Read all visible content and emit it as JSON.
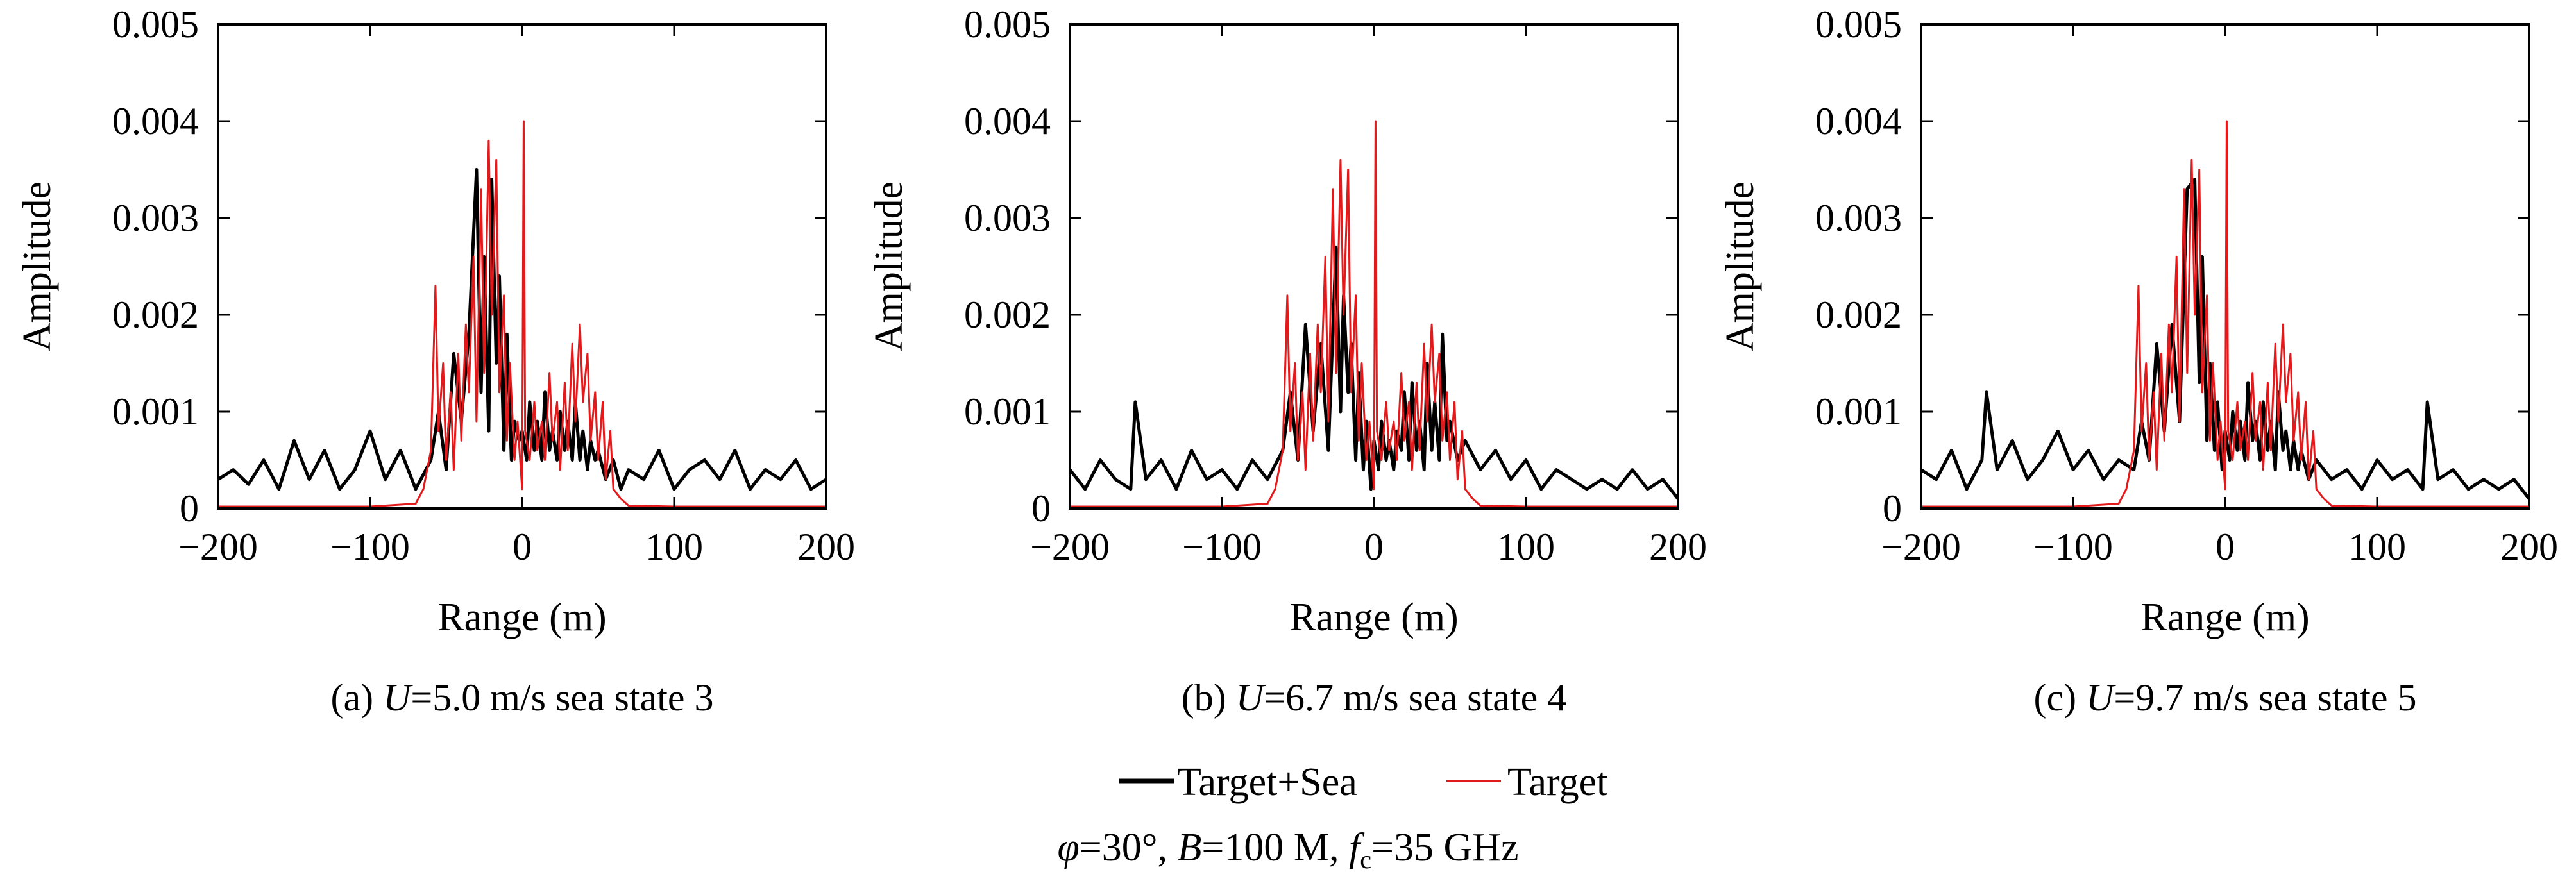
{
  "figure": {
    "legend": {
      "entries": [
        {
          "label": "Target+Sea",
          "color": "#000000"
        },
        {
          "label": "Target",
          "color": "#e31a1c"
        }
      ]
    },
    "params": {
      "phi_symbol": "φ",
      "phi_value": "=30°, ",
      "b_symbol": "B",
      "b_value": "=100 M, ",
      "f_symbol": "f",
      "f_sub": "c",
      "f_value": "=35 GHz"
    }
  },
  "chart_data": [
    {
      "type": "line",
      "panel": "(a)",
      "caption": {
        "prefix": "(a)  ",
        "var": "U",
        "rest": "=5.0 m/s sea state 3"
      },
      "xlabel": "Range (m)",
      "ylabel": "Amplitude",
      "xlim": [
        -200,
        200
      ],
      "ylim": [
        0,
        0.005
      ],
      "xticks": [
        -200,
        -100,
        0,
        100,
        200
      ],
      "xtick_labels": [
        "−200",
        "−100",
        "0",
        "100",
        "200"
      ],
      "yticks": [
        0,
        0.001,
        0.002,
        0.003,
        0.004,
        0.005
      ],
      "ytick_labels": [
        "0",
        "0.001",
        "0.002",
        "0.003",
        "0.004",
        "0.005"
      ],
      "series": [
        {
          "name": "Target+Sea",
          "color": "#000000",
          "width": 5,
          "x": [
            -200,
            -190,
            -180,
            -170,
            -160,
            -150,
            -140,
            -130,
            -120,
            -110,
            -100,
            -90,
            -80,
            -70,
            -60,
            -55,
            -50,
            -45,
            -40,
            -35,
            -30,
            -27,
            -25,
            -22,
            -20,
            -17,
            -15,
            -12,
            -10,
            -7,
            -5,
            -2,
            0,
            3,
            5,
            8,
            10,
            13,
            15,
            18,
            20,
            23,
            25,
            28,
            30,
            33,
            35,
            38,
            40,
            43,
            45,
            48,
            50,
            55,
            60,
            65,
            70,
            80,
            90,
            100,
            110,
            120,
            130,
            140,
            150,
            160,
            170,
            180,
            190,
            200
          ],
          "y": [
            0.0003,
            0.0004,
            0.00025,
            0.0005,
            0.0002,
            0.0007,
            0.0003,
            0.0006,
            0.0002,
            0.0004,
            0.0008,
            0.0003,
            0.0006,
            0.0002,
            0.0005,
            0.001,
            0.0004,
            0.0016,
            0.0009,
            0.0018,
            0.0035,
            0.0012,
            0.0026,
            0.0008,
            0.0034,
            0.0015,
            0.0024,
            0.0006,
            0.0018,
            0.0005,
            0.0009,
            0.0007,
            0.0008,
            0.0005,
            0.0011,
            0.0006,
            0.0009,
            0.0005,
            0.0012,
            0.0006,
            0.0008,
            0.0005,
            0.001,
            0.0006,
            0.0009,
            0.0005,
            0.0011,
            0.0005,
            0.0008,
            0.0004,
            0.0007,
            0.0005,
            0.0006,
            0.0003,
            0.0005,
            0.0002,
            0.0004,
            0.0003,
            0.0006,
            0.0002,
            0.0004,
            0.0005,
            0.0003,
            0.0006,
            0.0002,
            0.0004,
            0.0003,
            0.0005,
            0.0002,
            0.0003
          ]
        },
        {
          "name": "Target",
          "color": "#e31a1c",
          "width": 3,
          "x": [
            -200,
            -100,
            -70,
            -65,
            -60,
            -57,
            -55,
            -52,
            -50,
            -47,
            -45,
            -42,
            -40,
            -37,
            -35,
            -32,
            -30,
            -27,
            -25,
            -22,
            -20,
            -17,
            -15,
            -12,
            -10,
            -8,
            -5,
            -3,
            0,
            1,
            2,
            5,
            8,
            10,
            13,
            15,
            18,
            20,
            23,
            25,
            28,
            30,
            33,
            35,
            38,
            40,
            43,
            45,
            48,
            50,
            53,
            55,
            58,
            60,
            65,
            70,
            100,
            200
          ],
          "y": [
            2e-05,
            2e-05,
            5e-05,
            0.0002,
            0.0006,
            0.0023,
            0.0008,
            0.0015,
            0.0005,
            0.0012,
            0.0004,
            0.0016,
            0.0007,
            0.0019,
            0.0012,
            0.0026,
            0.0009,
            0.0033,
            0.0014,
            0.0038,
            0.002,
            0.0036,
            0.0012,
            0.0022,
            0.0007,
            0.0015,
            0.0005,
            0.0009,
            0.0002,
            0.004,
            0.0008,
            0.0005,
            0.0011,
            0.0006,
            0.0009,
            0.0005,
            0.0014,
            0.0007,
            0.0011,
            0.0004,
            0.0013,
            0.0006,
            0.0017,
            0.0009,
            0.0019,
            0.0011,
            0.0016,
            0.0007,
            0.0012,
            0.0005,
            0.0011,
            0.0003,
            0.0008,
            0.0002,
            0.0001,
            3e-05,
            2e-05,
            2e-05
          ]
        }
      ]
    },
    {
      "type": "line",
      "panel": "(b)",
      "caption": {
        "prefix": "(b)  ",
        "var": "U",
        "rest": "=6.7 m/s sea state 4"
      },
      "xlabel": "Range (m)",
      "ylabel": "Amplitude",
      "xlim": [
        -200,
        200
      ],
      "ylim": [
        0,
        0.005
      ],
      "xticks": [
        -200,
        -100,
        0,
        100,
        200
      ],
      "xtick_labels": [
        "−200",
        "−100",
        "0",
        "100",
        "200"
      ],
      "yticks": [
        0,
        0.001,
        0.002,
        0.003,
        0.004,
        0.005
      ],
      "ytick_labels": [
        "0",
        "0.001",
        "0.002",
        "0.003",
        "0.004",
        "0.005"
      ],
      "series": [
        {
          "name": "Target+Sea",
          "color": "#000000",
          "width": 5,
          "x": [
            -200,
            -190,
            -180,
            -170,
            -160,
            -157,
            -150,
            -140,
            -130,
            -120,
            -110,
            -100,
            -90,
            -80,
            -70,
            -60,
            -55,
            -50,
            -45,
            -40,
            -35,
            -30,
            -25,
            -22,
            -20,
            -17,
            -15,
            -12,
            -10,
            -7,
            -5,
            -2,
            0,
            3,
            5,
            8,
            10,
            13,
            15,
            18,
            20,
            23,
            25,
            28,
            30,
            33,
            35,
            38,
            40,
            43,
            45,
            48,
            50,
            55,
            60,
            70,
            80,
            90,
            100,
            110,
            120,
            130,
            140,
            150,
            160,
            170,
            180,
            190,
            200
          ],
          "y": [
            0.0004,
            0.0002,
            0.0005,
            0.0003,
            0.0002,
            0.0011,
            0.0003,
            0.0005,
            0.0002,
            0.0006,
            0.0003,
            0.0004,
            0.0002,
            0.0005,
            0.0003,
            0.0006,
            0.0012,
            0.0005,
            0.0019,
            0.0008,
            0.0017,
            0.0006,
            0.0027,
            0.001,
            0.0022,
            0.0012,
            0.0017,
            0.0005,
            0.0014,
            0.0004,
            0.0009,
            0.0002,
            0.0007,
            0.0004,
            0.0009,
            0.0005,
            0.0007,
            0.0004,
            0.0008,
            0.0006,
            0.0012,
            0.0005,
            0.0013,
            0.0006,
            0.0009,
            0.0004,
            0.0015,
            0.0006,
            0.0011,
            0.0005,
            0.0018,
            0.0007,
            0.0009,
            0.0005,
            0.0007,
            0.0004,
            0.0006,
            0.0003,
            0.0005,
            0.0002,
            0.0004,
            0.0003,
            0.0002,
            0.0003,
            0.0002,
            0.0004,
            0.0002,
            0.0003,
            0.0001
          ]
        },
        {
          "name": "Target",
          "color": "#e31a1c",
          "width": 3,
          "x": [
            -200,
            -100,
            -70,
            -65,
            -60,
            -57,
            -55,
            -52,
            -50,
            -47,
            -45,
            -42,
            -40,
            -37,
            -35,
            -32,
            -30,
            -27,
            -25,
            -22,
            -20,
            -17,
            -15,
            -12,
            -10,
            -8,
            -5,
            -3,
            0,
            1,
            2,
            5,
            8,
            10,
            13,
            15,
            18,
            20,
            23,
            25,
            28,
            30,
            33,
            35,
            38,
            40,
            43,
            45,
            48,
            50,
            53,
            55,
            58,
            60,
            65,
            70,
            100,
            200
          ],
          "y": [
            2e-05,
            2e-05,
            5e-05,
            0.0002,
            0.0006,
            0.0022,
            0.0008,
            0.0015,
            0.0005,
            0.0012,
            0.0004,
            0.0016,
            0.0007,
            0.0019,
            0.0012,
            0.0026,
            0.0009,
            0.0033,
            0.0014,
            0.0036,
            0.002,
            0.0035,
            0.0012,
            0.0022,
            0.0007,
            0.0015,
            0.0005,
            0.0009,
            0.0002,
            0.004,
            0.0008,
            0.0005,
            0.0011,
            0.0006,
            0.0009,
            0.0005,
            0.0014,
            0.0007,
            0.0011,
            0.0004,
            0.0013,
            0.0006,
            0.0017,
            0.0009,
            0.0019,
            0.0011,
            0.0016,
            0.0007,
            0.0012,
            0.0005,
            0.0011,
            0.0003,
            0.0008,
            0.0002,
            0.0001,
            3e-05,
            2e-05,
            2e-05
          ]
        }
      ]
    },
    {
      "type": "line",
      "panel": "(c)",
      "caption": {
        "prefix": "(c)  ",
        "var": "U",
        "rest": "=9.7 m/s sea state 5"
      },
      "xlabel": "Range (m)",
      "ylabel": "Amplitude",
      "xlim": [
        -200,
        200
      ],
      "ylim": [
        0,
        0.005
      ],
      "xticks": [
        -200,
        -100,
        0,
        100,
        200
      ],
      "xtick_labels": [
        "−200",
        "−100",
        "0",
        "100",
        "200"
      ],
      "yticks": [
        0,
        0.001,
        0.002,
        0.003,
        0.004,
        0.005
      ],
      "ytick_labels": [
        "0",
        "0.001",
        "0.002",
        "0.003",
        "0.004",
        "0.005"
      ],
      "series": [
        {
          "name": "Target+Sea",
          "color": "#000000",
          "width": 5,
          "x": [
            -200,
            -190,
            -180,
            -170,
            -160,
            -157,
            -150,
            -140,
            -130,
            -120,
            -110,
            -100,
            -90,
            -80,
            -70,
            -60,
            -55,
            -50,
            -45,
            -40,
            -35,
            -30,
            -25,
            -20,
            -17,
            -15,
            -12,
            -10,
            -7,
            -5,
            -2,
            0,
            3,
            5,
            8,
            10,
            13,
            15,
            18,
            20,
            23,
            25,
            28,
            30,
            33,
            35,
            38,
            40,
            43,
            45,
            48,
            50,
            55,
            60,
            70,
            80,
            90,
            100,
            110,
            120,
            130,
            133,
            140,
            150,
            160,
            170,
            180,
            190,
            200
          ],
          "y": [
            0.0004,
            0.0003,
            0.0006,
            0.0002,
            0.0005,
            0.0012,
            0.0004,
            0.0007,
            0.0003,
            0.0005,
            0.0008,
            0.0004,
            0.0006,
            0.0003,
            0.0005,
            0.0004,
            0.0009,
            0.0005,
            0.0017,
            0.0008,
            0.0019,
            0.0009,
            0.0033,
            0.0034,
            0.0013,
            0.0026,
            0.0007,
            0.0015,
            0.0006,
            0.0011,
            0.0004,
            0.0008,
            0.0005,
            0.001,
            0.0006,
            0.0009,
            0.0005,
            0.0013,
            0.0007,
            0.0009,
            0.0005,
            0.0011,
            0.0006,
            0.0009,
            0.0004,
            0.0012,
            0.0006,
            0.0008,
            0.0004,
            0.0007,
            0.0004,
            0.0006,
            0.0003,
            0.0005,
            0.0003,
            0.0004,
            0.0002,
            0.0005,
            0.0003,
            0.0004,
            0.0002,
            0.0011,
            0.0003,
            0.0004,
            0.0002,
            0.0003,
            0.0002,
            0.0003,
            0.0001
          ]
        },
        {
          "name": "Target",
          "color": "#e31a1c",
          "width": 3,
          "x": [
            -200,
            -100,
            -70,
            -65,
            -60,
            -57,
            -55,
            -52,
            -50,
            -47,
            -45,
            -42,
            -40,
            -37,
            -35,
            -32,
            -30,
            -27,
            -25,
            -22,
            -20,
            -17,
            -15,
            -12,
            -10,
            -8,
            -5,
            -3,
            0,
            1,
            2,
            5,
            8,
            10,
            13,
            15,
            18,
            20,
            23,
            25,
            28,
            30,
            33,
            35,
            38,
            40,
            43,
            45,
            48,
            50,
            53,
            55,
            58,
            60,
            65,
            70,
            100,
            200
          ],
          "y": [
            2e-05,
            2e-05,
            5e-05,
            0.0002,
            0.0006,
            0.0023,
            0.0008,
            0.0015,
            0.0005,
            0.0012,
            0.0004,
            0.0016,
            0.0007,
            0.0019,
            0.0012,
            0.0026,
            0.0009,
            0.0033,
            0.0014,
            0.0036,
            0.002,
            0.0035,
            0.0012,
            0.0022,
            0.0007,
            0.0015,
            0.0005,
            0.0009,
            0.0002,
            0.004,
            0.0008,
            0.0005,
            0.0011,
            0.0006,
            0.0009,
            0.0005,
            0.0014,
            0.0007,
            0.0011,
            0.0004,
            0.0013,
            0.0006,
            0.0017,
            0.0009,
            0.0019,
            0.0011,
            0.0016,
            0.0007,
            0.0012,
            0.0005,
            0.0011,
            0.0003,
            0.0008,
            0.0002,
            0.0001,
            3e-05,
            2e-05,
            2e-05
          ]
        }
      ]
    }
  ]
}
